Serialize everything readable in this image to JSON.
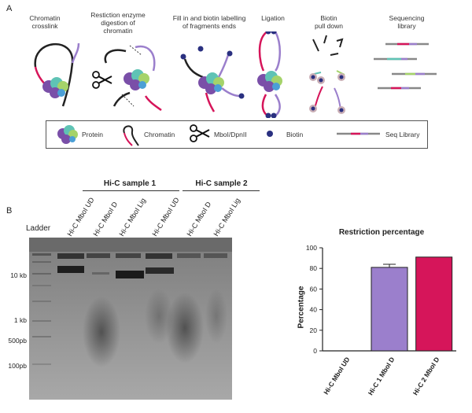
{
  "panel_a": {
    "letter": "A",
    "steps": [
      {
        "label": "Chromatin\ncrosslink"
      },
      {
        "label": "Restiction enzyme\ndigestion of\nchromatin"
      },
      {
        "label": "Fill   in and biotin labelling\nof fragments ends"
      },
      {
        "label": "Ligation"
      },
      {
        "label": "Biotin\npull down"
      },
      {
        "label": "Sequencing\nlibrary"
      }
    ],
    "legend": {
      "protein": "Protein",
      "chromatin": "Chromatin",
      "enzyme": "MboI/DpnII",
      "biotin": "Biotin",
      "seq": "Seq Library"
    }
  },
  "panel_b": {
    "letter": "B",
    "sample1": "Hi-C sample 1",
    "sample2": "Hi-C sample 2",
    "ladder": "Ladder",
    "lanes": [
      "Hi-C MboI UD",
      "Hi-C MboI D",
      "Hi-C MboI Lig",
      "Hi-C MboI UD",
      "Hi-C MboI D",
      "Hi-C MboI Lig"
    ],
    "markers": [
      "10 kb",
      "1 kb",
      "500pb",
      "100pb"
    ]
  },
  "chart_data": {
    "type": "bar",
    "title": "Restriction percentage",
    "ylabel": "Percentage",
    "xlabel": "",
    "categories": [
      "Hi-C MboI UD",
      "Hi-C 1 MboI D",
      "Hi-C 2 MboI D"
    ],
    "values": [
      0,
      81,
      91
    ],
    "errors": [
      0,
      3,
      0
    ],
    "ylim": [
      0,
      100
    ],
    "yticks": [
      0,
      20,
      40,
      60,
      80,
      100
    ],
    "colors": [
      "#ffffff",
      "#9b7fcc",
      "#d6155a"
    ]
  }
}
